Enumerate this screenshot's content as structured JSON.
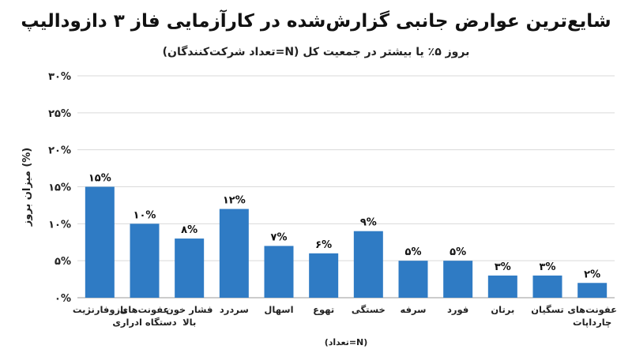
{
  "chart_data": {
    "type": "bar",
    "title": "شایع‌ترین عوارض جانبی گزارش‌شده در کارآزمایی فاز ۳ دازودالیپ",
    "subtitle": "بروز ۵٪ یا بیشتر در جمعیت کل (N=تعداد شرکت‌کنندگان)",
    "xlabel": "(N=تعداد)",
    "ylabel": "میزان بروز (%)",
    "ylim": [
      0,
      30
    ],
    "yticks": [
      0,
      5,
      10,
      15,
      20,
      25,
      30
    ],
    "ytick_labels": [
      "۰%",
      "۵%",
      "۱۰%",
      "۱۵%",
      "۲۰%",
      "۲۵%",
      "۳۰%"
    ],
    "grid": true,
    "bar_color": "#2f7bc4",
    "categories": [
      [
        "عفونت‌های",
        "چارداپات"
      ],
      [
        "تسگیان"
      ],
      [
        "برتان"
      ],
      [
        "فورد"
      ],
      [
        "سرفه"
      ],
      [
        "خستگی"
      ],
      [
        "تهوع"
      ],
      [
        "اسهال"
      ],
      [
        "سردرد"
      ],
      [
        "فشار خون",
        "بالا"
      ],
      [
        "عفونت‌های",
        "دستگاه ادراری"
      ],
      [
        "نازوفارنژیت"
      ]
    ],
    "values": [
      2,
      3,
      3,
      5,
      5,
      9,
      6,
      7,
      12,
      8,
      10,
      15
    ],
    "data_labels": [
      "۲%",
      "۳%",
      "۳%",
      "۵%",
      "۵%",
      "۹%",
      "۶%",
      "۷%",
      "۱۲%",
      "۸%",
      "۱۰%",
      "۱۵%"
    ]
  }
}
